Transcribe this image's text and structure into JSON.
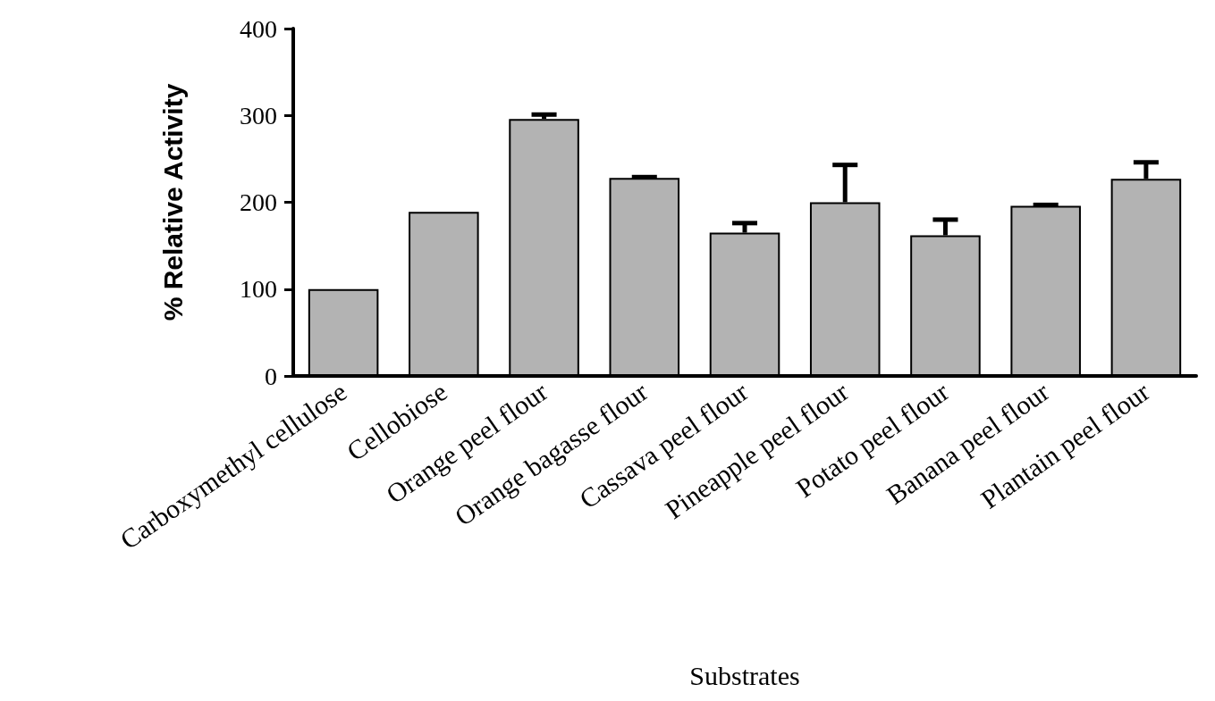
{
  "chart_data": {
    "type": "bar",
    "xlabel": "Substrates",
    "ylabel": "% Relative Activity",
    "categories": [
      "Carboxymethyl cellulose",
      "Cellobiose",
      "Orange peel flour",
      "Orange bagasse flour",
      "Cassava peel flour",
      "Pineapple peel flour",
      "Potato peel flour",
      "Banana peel flour",
      "Plantain peel flour"
    ],
    "values": [
      100,
      189,
      296,
      228,
      165,
      200,
      162,
      196,
      227
    ],
    "errors": [
      null,
      null,
      [
        296,
        301
      ],
      [
        228,
        229
      ],
      [
        165,
        176
      ],
      [
        200,
        243
      ],
      [
        162,
        180
      ],
      [
        196,
        197
      ],
      [
        227,
        246
      ]
    ],
    "color": "#b3b3b3",
    "ylim": [
      0,
      400
    ],
    "yticks": [
      0,
      100,
      200,
      300,
      400
    ],
    "grid": false
  }
}
